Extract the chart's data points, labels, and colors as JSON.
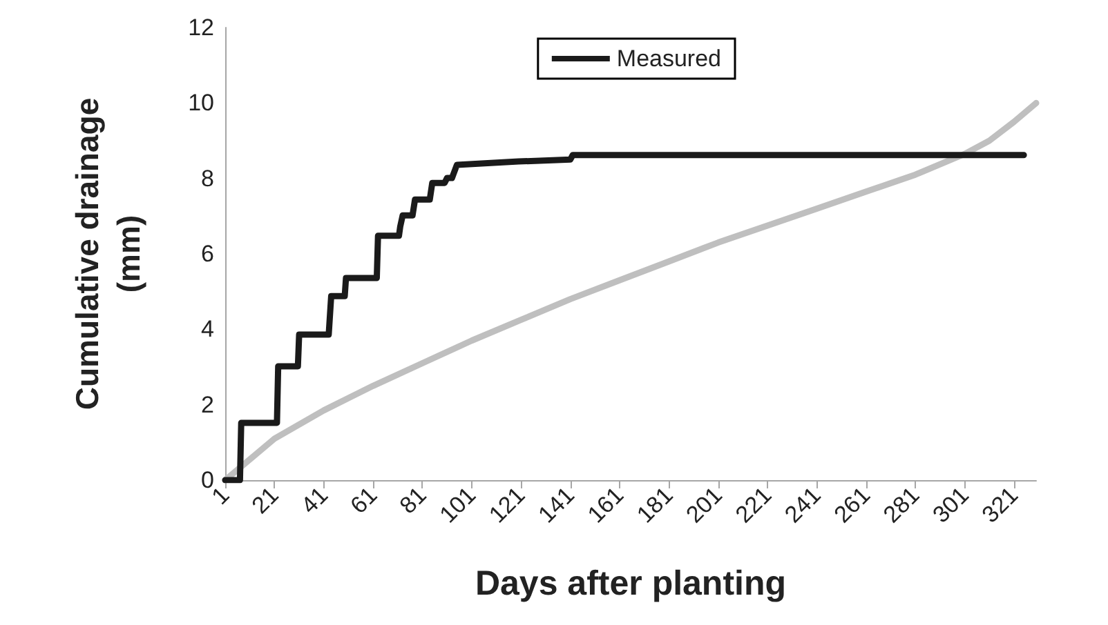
{
  "chart_data": {
    "type": "line",
    "xlabel": "Days after planting",
    "ylabel": "Cumulative drainage (mm)",
    "xlim": [
      1,
      330
    ],
    "xticks": [
      1,
      21,
      41,
      61,
      81,
      101,
      121,
      141,
      161,
      181,
      201,
      221,
      241,
      261,
      281,
      301,
      321
    ],
    "ylim": [
      0,
      12
    ],
    "yticks": [
      0,
      2,
      4,
      6,
      8,
      10,
      12
    ],
    "grid": false,
    "legend": "top right",
    "marker": "none",
    "line_style": "solid",
    "series": [
      {
        "name": "Measured",
        "color": "#1a1a1a",
        "x": [
          1,
          7,
          7.5,
          22,
          22.5,
          30.5,
          31,
          43,
          44,
          49.5,
          50,
          62.5,
          63,
          71.5,
          72,
          73,
          77,
          78,
          84,
          85,
          90,
          91,
          93,
          95,
          120,
          141,
          142,
          325
        ],
        "values": [
          0,
          0,
          1.52,
          1.52,
          3.02,
          3.02,
          3.86,
          3.86,
          4.88,
          4.88,
          5.36,
          5.36,
          6.48,
          6.48,
          6.72,
          7.02,
          7.02,
          7.44,
          7.44,
          7.88,
          7.88,
          8.01,
          8.01,
          8.36,
          8.45,
          8.5,
          8.62,
          8.62
        ]
      },
      {
        "color": "#bfbfbf",
        "x": [
          1,
          21,
          41,
          61,
          81,
          101,
          121,
          141,
          161,
          181,
          201,
          221,
          241,
          261,
          281,
          301,
          311,
          321,
          330
        ],
        "values": [
          0,
          1.1,
          1.85,
          2.5,
          3.1,
          3.7,
          4.25,
          4.8,
          5.3,
          5.8,
          6.3,
          6.75,
          7.2,
          7.65,
          8.1,
          8.65,
          9.0,
          9.5,
          10.0
        ]
      }
    ]
  }
}
